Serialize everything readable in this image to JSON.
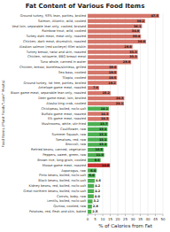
{
  "chart_data": {
    "type": "bar",
    "orientation": "horizontal",
    "title": "Fat Content of Various Food Items",
    "xlabel": "% of Calories from Fat",
    "ylabel": "Food Items (Plant Foods\"Lean\" Meats)",
    "categories": [
      "Ground turkey, 93% lean, patties, broiled",
      "Salmon, Atlantic, wild, cooked",
      "Veal loin, separable lean only, cooked, braised",
      "Rainbow trout, wild, cooked",
      "Turkey dark meat, meat only, roasted",
      "Chicken, dark meat, drumstick, roasted",
      "Alaskan salmon (red sockeye) fillet w/skin",
      "Turkey breast, twist and skin, roasted",
      "Chicken, rotisserie, BBQ breast meat",
      "Tuna whole, canned in water",
      "Chicken, breast, boneless/skinless, grilled",
      "Sea bass, cooked",
      "Tilapia, cooked",
      "Ground turkey, fat free, patties, broiled",
      "Antelope game meat, roasted",
      "Bison game meat, separable lean only, roasted",
      "Deer game meat, loin, broiled",
      "Alaska king crab, cooked",
      "Chickpeas, boiled, no/lo salt",
      "Buffalo game meat, roasted",
      "Elk game meat, roasted",
      "Mushrooms, white, stir-fried",
      "Cauliflower, raw",
      "Summer Squash, raw",
      "Tomatoes, red, raw",
      "Broccoli, raw",
      "Refried beans, canned, vegetarian",
      "Peppers, sweet, green, raw",
      "Brown rice, long-grain, cooked",
      "Moose game meat, roasted",
      "Asparagus, raw",
      "Pinto beans, boiled, no/lo salt",
      "Black beans, boiled, no/lo salt",
      "Kidney beans, red, boiled, no/lo salt",
      "Great northern beans, boiled, no/lo salt",
      "Carrots, baby, raw",
      "Lentils, boiled, no/lo salt",
      "Quinoa, cooked, raw",
      "Potatoes, red, flesh and skin, baked"
    ],
    "values": [
      47.5,
      38.2,
      36.1,
      34.8,
      35.4,
      38.8,
      29.8,
      33.3,
      33.3,
      28.9,
      19.6,
      19.5,
      19.5,
      19.2,
      7.6,
      15.2,
      24.3,
      24.1,
      14.1,
      14.3,
      14.3,
      13.7,
      13.1,
      13.1,
      13.1,
      13.1,
      10.5,
      11.0,
      8.6,
      14.8,
      6.0,
      5.0,
      4.6,
      4.2,
      4.2,
      4.0,
      3.2,
      2.8,
      2.5
    ],
    "value_labels": [
      "47.5",
      "38.2",
      "36.1",
      "34.8",
      "35.4",
      "38.8",
      "29.8",
      "33.3",
      "33.3",
      "28.9",
      "19.6",
      "19.5",
      "19.5",
      "19.2",
      "7.6",
      "15.2",
      "24.3",
      "24.1",
      "14.1",
      "14.3",
      "14.3",
      "13.7",
      "13.1",
      "13.1",
      "13.1",
      "13.1",
      "10.5",
      "11.0",
      "8.6",
      "14.8",
      "6.0",
      "5.0",
      "4.6",
      "4.2",
      "4.2",
      "4.0",
      "3.2",
      "2.8",
      "2.5"
    ],
    "data_labels": true,
    "colors": [
      "#d4756a",
      "#d4756a",
      "#d4756a",
      "#d4756a",
      "#d4756a",
      "#d4756a",
      "#d4756a",
      "#d4756a",
      "#d4756a",
      "#d4756a",
      "#d4756a",
      "#d4756a",
      "#d4756a",
      "#d4756a",
      "#d4756a",
      "#d4756a",
      "#d4756a",
      "#d4756a",
      "#4caf50",
      "#d4756a",
      "#d4756a",
      "#4caf50",
      "#4caf50",
      "#4caf50",
      "#4caf50",
      "#4caf50",
      "#4caf50",
      "#4caf50",
      "#4caf50",
      "#cc3333",
      "#4caf50",
      "#4caf50",
      "#4caf50",
      "#4caf50",
      "#4caf50",
      "#4caf50",
      "#4caf50",
      "#4caf50",
      "#4caf50"
    ],
    "xlim": [
      0,
      50
    ],
    "xticks": [
      0,
      5,
      10,
      15,
      20,
      25,
      30,
      35,
      40,
      45,
      50
    ],
    "grid": true
  }
}
